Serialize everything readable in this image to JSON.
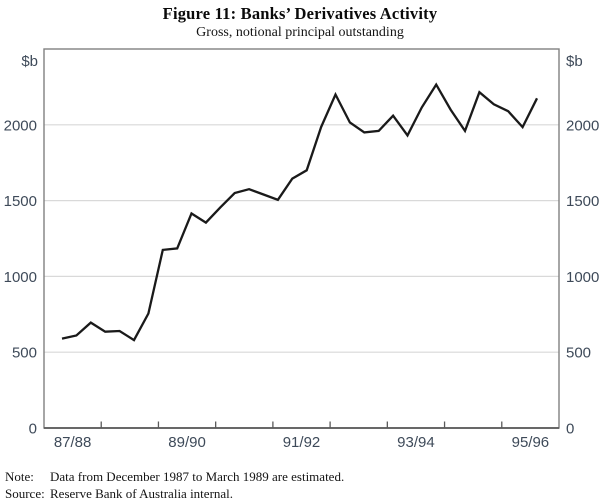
{
  "figure": {
    "title": "Figure 11: Banks’ Derivatives Activity",
    "subtitle": "Gross, notional principal outstanding",
    "note_label": "Note:",
    "note_text": "Data from December 1987 to March 1989 are estimated.",
    "source_label": "Source:",
    "source_text": "Reserve Bank of Australia internal."
  },
  "chart_data": {
    "type": "line",
    "title": "Figure 11: Banks’ Derivatives Activity",
    "subtitle": "Gross, notional principal outstanding",
    "unit_label": "$b",
    "xlabel": "",
    "ylabel": "$b",
    "series_name": "Gross notional principal outstanding",
    "x": [
      "Dec-87",
      "Mar-88",
      "Jun-88",
      "Sep-88",
      "Dec-88",
      "Mar-89",
      "Jun-89",
      "Sep-89",
      "Dec-89",
      "Mar-90",
      "Jun-90",
      "Sep-90",
      "Dec-90",
      "Mar-91",
      "Jun-91",
      "Sep-91",
      "Dec-91",
      "Mar-92",
      "Jun-92",
      "Sep-92",
      "Dec-92",
      "Mar-93",
      "Jun-93",
      "Sep-93",
      "Dec-93",
      "Mar-94",
      "Jun-94",
      "Sep-94",
      "Dec-94",
      "Mar-95",
      "Jun-95",
      "Sep-95",
      "Dec-95",
      "Mar-96"
    ],
    "values": [
      590,
      610,
      695,
      635,
      640,
      580,
      755,
      1175,
      1185,
      1415,
      1355,
      1455,
      1550,
      1575,
      1540,
      1505,
      1645,
      1700,
      1985,
      2200,
      2015,
      1950,
      1960,
      2060,
      1930,
      2115,
      2265,
      2100,
      1960,
      2215,
      2135,
      2090,
      1985,
      2175
    ],
    "x_tick_labels": [
      "87/88",
      "89/90",
      "91/92",
      "93/94",
      "95/96"
    ],
    "y_ticks": [
      0,
      500,
      1000,
      1500,
      2000
    ],
    "ylim": [
      0,
      2500
    ],
    "grid": true,
    "legend": "none",
    "line_color": "#1a1a1a",
    "grid_color": "#d9d9d9",
    "frame_color": "#808080",
    "axis_color": "#5a5a5a",
    "label_color": "#3e4a59"
  }
}
